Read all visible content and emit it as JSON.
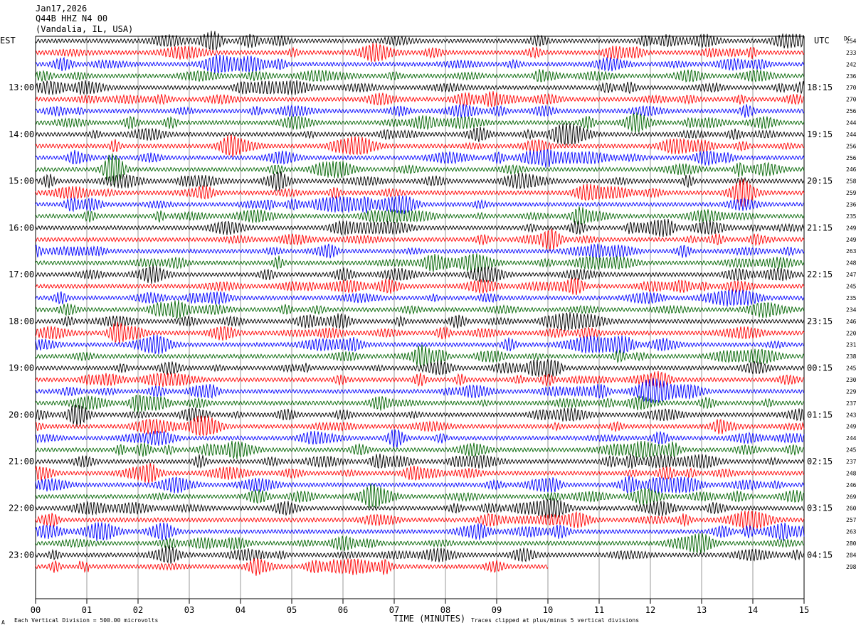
{
  "header": {
    "date": "Jan17,2026",
    "station": "Q44B HHZ N4 00",
    "location": "(Vandalia, IL, USA)",
    "left_tz": "EST",
    "right_tz": "UTC",
    "dc_label": "DC"
  },
  "footer": {
    "scale_note": "Each Vertical Division =  500.00 microvolts",
    "clip_note": "Traces clipped at plus/minus 5 vertical divisions",
    "corner_mark": "A"
  },
  "colors": [
    "#000000",
    "#ff0000",
    "#0000ff",
    "#006400"
  ],
  "chart_data": {
    "type": "line",
    "title": "Jan17,2026 Q44B HHZ N4 00 (Vandalia, IL, USA)",
    "xlabel": "TIME (MINUTES)",
    "xlim": [
      0,
      15
    ],
    "x_ticks": [
      "00",
      "01",
      "02",
      "03",
      "04",
      "05",
      "06",
      "07",
      "08",
      "09",
      "10",
      "11",
      "12",
      "13",
      "14",
      "15"
    ],
    "left_hour_labels": [
      "13:00",
      "14:00",
      "15:00",
      "16:00",
      "17:00",
      "18:00",
      "19:00",
      "20:00",
      "21:00",
      "22:00",
      "23:00"
    ],
    "right_hour_labels": [
      "18:15",
      "19:15",
      "20:15",
      "21:15",
      "22:15",
      "23:15",
      "00:15",
      "01:15",
      "02:15",
      "03:15",
      "04:15"
    ],
    "trace_minutes": 15,
    "traces_per_hour": 4,
    "trace_count": 46,
    "last_trace_end_minute": 10,
    "dc_values": [
      254,
      233,
      242,
      236,
      270,
      270,
      256,
      244,
      244,
      256,
      256,
      246,
      258,
      259,
      236,
      235,
      249,
      249,
      263,
      248,
      247,
      245,
      235,
      234,
      246,
      220,
      231,
      238,
      245,
      230,
      229,
      237,
      243,
      249,
      244,
      245,
      237,
      248,
      246,
      269,
      260,
      257,
      263,
      280,
      284,
      298
    ],
    "grid": true
  }
}
